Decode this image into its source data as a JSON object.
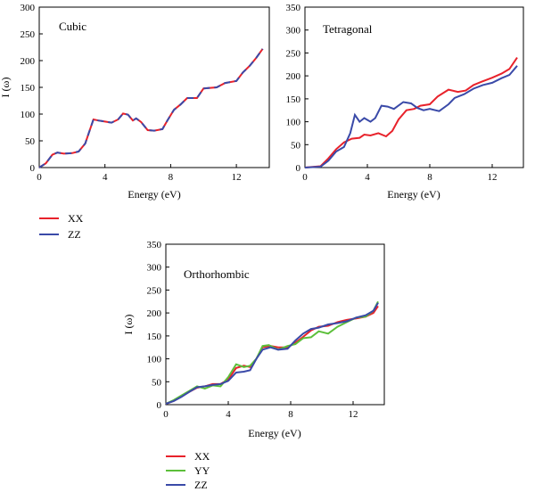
{
  "chart_data": [
    {
      "type": "line",
      "title": "Cubic",
      "xlabel": "Energy (eV)",
      "ylabel": "I (ω)",
      "xlim": [
        0,
        14
      ],
      "ylim": [
        0,
        300
      ],
      "xticks": [
        "0",
        "4",
        "8",
        "12"
      ],
      "yticks": [
        "0",
        "50",
        "100",
        "150",
        "200",
        "250",
        "300"
      ],
      "grid": false,
      "legend_placement": "below",
      "series": [
        {
          "name": "XX",
          "color": "#e8222b",
          "points": [
            [
              0,
              0
            ],
            [
              0.4,
              8
            ],
            [
              0.8,
              24
            ],
            [
              1.1,
              28
            ],
            [
              1.5,
              26
            ],
            [
              2,
              27
            ],
            [
              2.4,
              30
            ],
            [
              2.8,
              45
            ],
            [
              3.1,
              72
            ],
            [
              3.3,
              90
            ],
            [
              3.6,
              88
            ],
            [
              4,
              86
            ],
            [
              4.4,
              84
            ],
            [
              4.8,
              90
            ],
            [
              5.1,
              101
            ],
            [
              5.4,
              99
            ],
            [
              5.7,
              88
            ],
            [
              5.9,
              92
            ],
            [
              6.2,
              85
            ],
            [
              6.6,
              70
            ],
            [
              7,
              69
            ],
            [
              7.5,
              72
            ],
            [
              7.8,
              88
            ],
            [
              8.2,
              108
            ],
            [
              8.6,
              118
            ],
            [
              9,
              130
            ],
            [
              9.6,
              130
            ],
            [
              10,
              148
            ],
            [
              10.8,
              150
            ],
            [
              11.3,
              158
            ],
            [
              12,
              162
            ],
            [
              12.4,
              178
            ],
            [
              12.8,
              190
            ],
            [
              13.2,
              205
            ],
            [
              13.6,
              222
            ]
          ]
        },
        {
          "name": "ZZ",
          "color": "#3a4aa8",
          "points": [
            [
              0,
              0
            ],
            [
              0.4,
              8
            ],
            [
              0.8,
              24
            ],
            [
              1.1,
              28
            ],
            [
              1.5,
              26
            ],
            [
              2,
              27
            ],
            [
              2.4,
              30
            ],
            [
              2.8,
              45
            ],
            [
              3.1,
              72
            ],
            [
              3.3,
              90
            ],
            [
              3.6,
              88
            ],
            [
              4,
              86
            ],
            [
              4.4,
              84
            ],
            [
              4.8,
              90
            ],
            [
              5.1,
              101
            ],
            [
              5.4,
              99
            ],
            [
              5.7,
              88
            ],
            [
              5.9,
              92
            ],
            [
              6.2,
              85
            ],
            [
              6.6,
              70
            ],
            [
              7,
              69
            ],
            [
              7.5,
              72
            ],
            [
              7.8,
              88
            ],
            [
              8.2,
              108
            ],
            [
              8.6,
              118
            ],
            [
              9,
              130
            ],
            [
              9.6,
              130
            ],
            [
              10,
              148
            ],
            [
              10.8,
              150
            ],
            [
              11.3,
              158
            ],
            [
              12,
              162
            ],
            [
              12.4,
              178
            ],
            [
              12.8,
              190
            ],
            [
              13.2,
              205
            ],
            [
              13.6,
              222
            ]
          ]
        }
      ]
    },
    {
      "type": "line",
      "title": "Tetragonal",
      "xlabel": "Energy (eV)",
      "ylabel": "",
      "xlim": [
        0,
        14
      ],
      "ylim": [
        0,
        350
      ],
      "xticks": [
        "0",
        "4",
        "8",
        "12"
      ],
      "yticks": [
        "0",
        "50",
        "100",
        "150",
        "200",
        "250",
        "300",
        "350"
      ],
      "grid": false,
      "series": [
        {
          "name": "XX",
          "color": "#e8222b",
          "points": [
            [
              0,
              0
            ],
            [
              1,
              3
            ],
            [
              1.5,
              20
            ],
            [
              2,
              40
            ],
            [
              2.5,
              55
            ],
            [
              3,
              63
            ],
            [
              3.5,
              65
            ],
            [
              3.8,
              72
            ],
            [
              4.2,
              70
            ],
            [
              4.7,
              75
            ],
            [
              5.2,
              68
            ],
            [
              5.6,
              80
            ],
            [
              6,
              105
            ],
            [
              6.5,
              125
            ],
            [
              7,
              128
            ],
            [
              7.4,
              135
            ],
            [
              8,
              138
            ],
            [
              8.5,
              155
            ],
            [
              9.2,
              170
            ],
            [
              9.8,
              165
            ],
            [
              10.3,
              168
            ],
            [
              10.8,
              180
            ],
            [
              11.3,
              187
            ],
            [
              12,
              196
            ],
            [
              12.6,
              205
            ],
            [
              13.1,
              215
            ],
            [
              13.6,
              240
            ]
          ]
        },
        {
          "name": "ZZ",
          "color": "#3a4aa8",
          "points": [
            [
              0,
              0
            ],
            [
              1,
              2
            ],
            [
              1.5,
              15
            ],
            [
              2,
              35
            ],
            [
              2.5,
              45
            ],
            [
              2.9,
              75
            ],
            [
              3.2,
              115
            ],
            [
              3.5,
              100
            ],
            [
              3.8,
              108
            ],
            [
              4.2,
              100
            ],
            [
              4.5,
              108
            ],
            [
              4.9,
              135
            ],
            [
              5.3,
              133
            ],
            [
              5.7,
              128
            ],
            [
              6.3,
              143
            ],
            [
              6.8,
              140
            ],
            [
              7.2,
              130
            ],
            [
              7.6,
              125
            ],
            [
              8,
              128
            ],
            [
              8.6,
              123
            ],
            [
              9.2,
              138
            ],
            [
              9.6,
              152
            ],
            [
              10.2,
              160
            ],
            [
              10.8,
              172
            ],
            [
              11.4,
              180
            ],
            [
              12,
              185
            ],
            [
              12.6,
              195
            ],
            [
              13.1,
              202
            ],
            [
              13.6,
              222
            ]
          ]
        }
      ]
    },
    {
      "type": "line",
      "title": "Orthorhombic",
      "xlabel": "Energy (eV)",
      "ylabel": "I (ω)",
      "xlim": [
        0,
        14
      ],
      "ylim": [
        0,
        350
      ],
      "xticks": [
        "0",
        "4",
        "8",
        "12"
      ],
      "yticks": [
        "0",
        "50",
        "100",
        "150",
        "200",
        "250",
        "300",
        "350"
      ],
      "grid": false,
      "legend_placement": "below",
      "series": [
        {
          "name": "XX",
          "color": "#e8222b",
          "points": [
            [
              0,
              2
            ],
            [
              0.5,
              8
            ],
            [
              1,
              18
            ],
            [
              1.5,
              28
            ],
            [
              2,
              37
            ],
            [
              2.5,
              40
            ],
            [
              3,
              45
            ],
            [
              3.5,
              45
            ],
            [
              4,
              55
            ],
            [
              4.5,
              80
            ],
            [
              5,
              85
            ],
            [
              5.4,
              82
            ],
            [
              5.8,
              100
            ],
            [
              6.2,
              125
            ],
            [
              6.7,
              128
            ],
            [
              7.2,
              125
            ],
            [
              7.8,
              125
            ],
            [
              8.3,
              135
            ],
            [
              8.8,
              148
            ],
            [
              9.3,
              162
            ],
            [
              9.8,
              170
            ],
            [
              10.4,
              172
            ],
            [
              11,
              180
            ],
            [
              11.6,
              185
            ],
            [
              12.2,
              188
            ],
            [
              12.8,
              192
            ],
            [
              13.3,
              200
            ],
            [
              13.6,
              215
            ]
          ]
        },
        {
          "name": "YY",
          "color": "#5cbf3a",
          "points": [
            [
              0,
              2
            ],
            [
              0.5,
              10
            ],
            [
              1,
              20
            ],
            [
              1.5,
              30
            ],
            [
              2,
              40
            ],
            [
              2.5,
              35
            ],
            [
              3,
              42
            ],
            [
              3.5,
              40
            ],
            [
              4,
              60
            ],
            [
              4.5,
              88
            ],
            [
              5,
              82
            ],
            [
              5.4,
              85
            ],
            [
              5.8,
              100
            ],
            [
              6.2,
              128
            ],
            [
              6.6,
              130
            ],
            [
              7.2,
              120
            ],
            [
              7.8,
              128
            ],
            [
              8.3,
              132
            ],
            [
              8.8,
              145
            ],
            [
              9.3,
              147
            ],
            [
              9.8,
              160
            ],
            [
              10.4,
              155
            ],
            [
              11,
              170
            ],
            [
              11.6,
              180
            ],
            [
              12.2,
              190
            ],
            [
              12.8,
              192
            ],
            [
              13.3,
              205
            ],
            [
              13.6,
              225
            ]
          ]
        },
        {
          "name": "ZZ",
          "color": "#3a4aa8",
          "points": [
            [
              0,
              2
            ],
            [
              0.5,
              8
            ],
            [
              1,
              17
            ],
            [
              1.5,
              28
            ],
            [
              2,
              38
            ],
            [
              2.5,
              40
            ],
            [
              3,
              43
            ],
            [
              3.5,
              45
            ],
            [
              4,
              52
            ],
            [
              4.5,
              70
            ],
            [
              5,
              72
            ],
            [
              5.4,
              75
            ],
            [
              5.8,
              100
            ],
            [
              6.2,
              120
            ],
            [
              6.7,
              125
            ],
            [
              7.2,
              120
            ],
            [
              7.8,
              122
            ],
            [
              8.3,
              140
            ],
            [
              8.8,
              155
            ],
            [
              9.3,
              165
            ],
            [
              9.8,
              168
            ],
            [
              10.4,
              175
            ],
            [
              11,
              178
            ],
            [
              11.6,
              182
            ],
            [
              12.2,
              190
            ],
            [
              12.8,
              195
            ],
            [
              13.3,
              205
            ],
            [
              13.6,
              222
            ]
          ]
        }
      ]
    }
  ]
}
